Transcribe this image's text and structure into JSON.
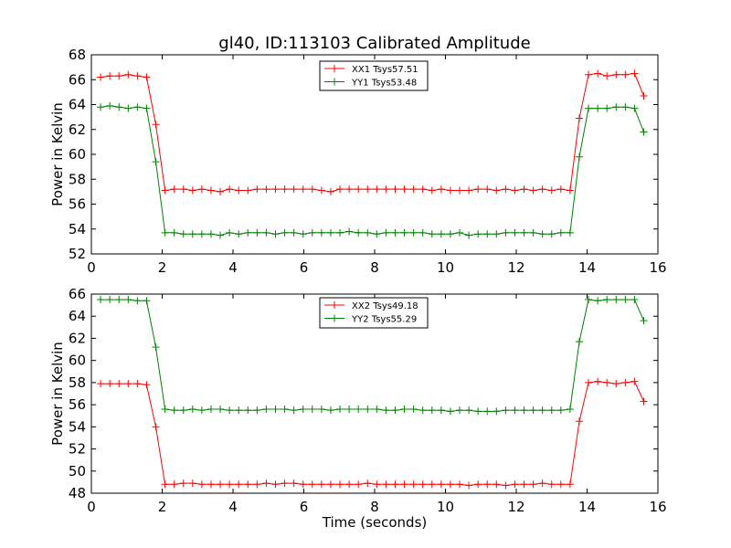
{
  "figure": {
    "title": "gl40, ID:113103 Calibrated Amplitude"
  },
  "chart_data": [
    {
      "type": "line",
      "title": "gl40, ID:113103 Calibrated Amplitude",
      "xlabel": "",
      "ylabel": "Power in Kelvin",
      "xlim": [
        0,
        16
      ],
      "ylim": [
        52,
        68
      ],
      "xticks": [
        "0",
        "2",
        "4",
        "6",
        "8",
        "10",
        "12",
        "14",
        "16"
      ],
      "yticks": [
        "52",
        "54",
        "56",
        "58",
        "60",
        "62",
        "64",
        "66",
        "68"
      ],
      "grid": false,
      "legend_position": "top-center",
      "x": [
        0.26,
        0.52,
        0.78,
        1.04,
        1.3,
        1.56,
        1.82,
        2.08,
        2.34,
        2.6,
        2.86,
        3.12,
        3.38,
        3.64,
        3.9,
        4.16,
        4.42,
        4.68,
        4.94,
        5.2,
        5.46,
        5.72,
        5.98,
        6.24,
        6.5,
        6.76,
        7.02,
        7.28,
        7.54,
        7.8,
        8.06,
        8.32,
        8.58,
        8.84,
        9.1,
        9.36,
        9.62,
        9.88,
        10.14,
        10.4,
        10.66,
        10.92,
        11.18,
        11.44,
        11.7,
        11.96,
        12.22,
        12.48,
        12.74,
        13.0,
        13.26,
        13.52,
        13.78,
        14.04,
        14.3,
        14.56,
        14.82,
        15.08,
        15.34,
        15.6
      ],
      "series": [
        {
          "name": "XX1 Tsys57.51",
          "color": "#ff0000",
          "values": [
            66.2,
            66.3,
            66.3,
            66.4,
            66.3,
            66.2,
            62.4,
            57.1,
            57.2,
            57.2,
            57.1,
            57.2,
            57.1,
            57.0,
            57.2,
            57.1,
            57.1,
            57.2,
            57.2,
            57.2,
            57.2,
            57.2,
            57.2,
            57.2,
            57.1,
            57.0,
            57.2,
            57.2,
            57.2,
            57.2,
            57.2,
            57.2,
            57.2,
            57.2,
            57.2,
            57.2,
            57.1,
            57.2,
            57.1,
            57.1,
            57.1,
            57.2,
            57.2,
            57.1,
            57.2,
            57.1,
            57.2,
            57.1,
            57.2,
            57.1,
            57.2,
            57.1,
            62.9,
            66.4,
            66.5,
            66.3,
            66.4,
            66.4,
            66.5,
            64.7
          ]
        },
        {
          "name": "YY1 Tsys53.48",
          "color": "#008000",
          "values": [
            63.8,
            63.9,
            63.8,
            63.7,
            63.8,
            63.7,
            59.4,
            53.7,
            53.7,
            53.6,
            53.6,
            53.6,
            53.6,
            53.5,
            53.7,
            53.6,
            53.7,
            53.7,
            53.7,
            53.6,
            53.7,
            53.7,
            53.6,
            53.7,
            53.7,
            53.7,
            53.7,
            53.8,
            53.7,
            53.7,
            53.6,
            53.7,
            53.7,
            53.7,
            53.7,
            53.7,
            53.6,
            53.6,
            53.6,
            53.7,
            53.5,
            53.6,
            53.6,
            53.6,
            53.7,
            53.7,
            53.7,
            53.7,
            53.6,
            53.6,
            53.7,
            53.7,
            59.8,
            63.7,
            63.7,
            63.7,
            63.8,
            63.8,
            63.7,
            61.8
          ]
        }
      ]
    },
    {
      "type": "line",
      "title": "",
      "xlabel": "Time (seconds)",
      "ylabel": "Power in Kelvin",
      "xlim": [
        0,
        16
      ],
      "ylim": [
        48,
        66
      ],
      "xticks": [
        "0",
        "2",
        "4",
        "6",
        "8",
        "10",
        "12",
        "14",
        "16"
      ],
      "yticks": [
        "48",
        "50",
        "52",
        "54",
        "56",
        "58",
        "60",
        "62",
        "64",
        "66"
      ],
      "grid": false,
      "legend_position": "top-center",
      "x": [
        0.26,
        0.52,
        0.78,
        1.04,
        1.3,
        1.56,
        1.82,
        2.08,
        2.34,
        2.6,
        2.86,
        3.12,
        3.38,
        3.64,
        3.9,
        4.16,
        4.42,
        4.68,
        4.94,
        5.2,
        5.46,
        5.72,
        5.98,
        6.24,
        6.5,
        6.76,
        7.02,
        7.28,
        7.54,
        7.8,
        8.06,
        8.32,
        8.58,
        8.84,
        9.1,
        9.36,
        9.62,
        9.88,
        10.14,
        10.4,
        10.66,
        10.92,
        11.18,
        11.44,
        11.7,
        11.96,
        12.22,
        12.48,
        12.74,
        13.0,
        13.26,
        13.52,
        13.78,
        14.04,
        14.3,
        14.56,
        14.82,
        15.08,
        15.34,
        15.6
      ],
      "series": [
        {
          "name": "XX2 Tsys49.18",
          "color": "#ff0000",
          "values": [
            57.9,
            57.9,
            57.9,
            57.9,
            57.9,
            57.8,
            54.0,
            48.8,
            48.8,
            48.9,
            48.9,
            48.8,
            48.8,
            48.8,
            48.8,
            48.8,
            48.8,
            48.8,
            48.9,
            48.8,
            48.9,
            48.9,
            48.8,
            48.8,
            48.8,
            48.8,
            48.8,
            48.8,
            48.8,
            48.9,
            48.8,
            48.8,
            48.8,
            48.8,
            48.8,
            48.8,
            48.8,
            48.8,
            48.8,
            48.8,
            48.7,
            48.8,
            48.8,
            48.8,
            48.7,
            48.8,
            48.8,
            48.8,
            48.9,
            48.8,
            48.8,
            48.8,
            54.5,
            58.0,
            58.1,
            58.0,
            57.9,
            58.0,
            58.1,
            56.3
          ]
        },
        {
          "name": "YY2 Tsys55.29",
          "color": "#008000",
          "values": [
            65.5,
            65.5,
            65.5,
            65.5,
            65.4,
            65.4,
            61.2,
            55.6,
            55.5,
            55.5,
            55.6,
            55.5,
            55.6,
            55.6,
            55.5,
            55.5,
            55.5,
            55.5,
            55.6,
            55.6,
            55.6,
            55.5,
            55.6,
            55.6,
            55.6,
            55.5,
            55.6,
            55.6,
            55.6,
            55.6,
            55.6,
            55.5,
            55.5,
            55.6,
            55.6,
            55.5,
            55.5,
            55.5,
            55.4,
            55.5,
            55.5,
            55.4,
            55.4,
            55.4,
            55.5,
            55.5,
            55.5,
            55.5,
            55.5,
            55.5,
            55.5,
            55.6,
            61.7,
            65.5,
            65.4,
            65.5,
            65.5,
            65.5,
            65.5,
            63.6
          ]
        }
      ]
    }
  ]
}
